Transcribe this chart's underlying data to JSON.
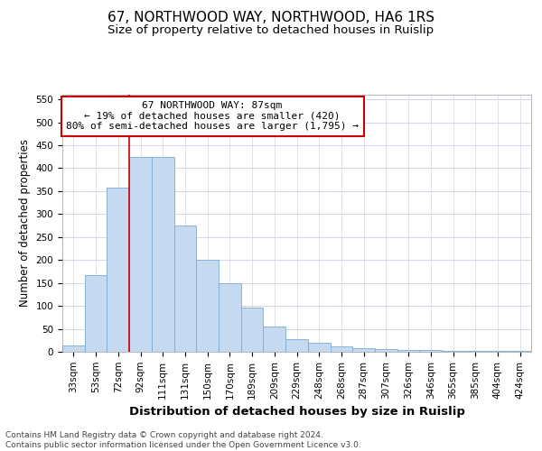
{
  "title": "67, NORTHWOOD WAY, NORTHWOOD, HA6 1RS",
  "subtitle": "Size of property relative to detached houses in Ruislip",
  "xlabel": "Distribution of detached houses by size in Ruislip",
  "ylabel": "Number of detached properties",
  "categories": [
    "33sqm",
    "53sqm",
    "72sqm",
    "92sqm",
    "111sqm",
    "131sqm",
    "150sqm",
    "170sqm",
    "189sqm",
    "209sqm",
    "229sqm",
    "248sqm",
    "268sqm",
    "287sqm",
    "307sqm",
    "326sqm",
    "346sqm",
    "365sqm",
    "385sqm",
    "404sqm",
    "424sqm"
  ],
  "values": [
    13,
    168,
    357,
    425,
    425,
    275,
    200,
    150,
    97,
    55,
    28,
    20,
    11,
    7,
    5,
    3,
    3,
    2,
    2,
    1,
    2
  ],
  "bar_color": "#c5d9f0",
  "bar_edge_color": "#7aadd4",
  "vline_x": 2.5,
  "vline_color": "#cc0000",
  "annotation_text": "67 NORTHWOOD WAY: 87sqm\n← 19% of detached houses are smaller (420)\n80% of semi-detached houses are larger (1,795) →",
  "annotation_box_color": "#ffffff",
  "annotation_box_edge": "#cc0000",
  "ylim": [
    0,
    560
  ],
  "yticks": [
    0,
    50,
    100,
    150,
    200,
    250,
    300,
    350,
    400,
    450,
    500,
    550
  ],
  "footer_text": "Contains HM Land Registry data © Crown copyright and database right 2024.\nContains public sector information licensed under the Open Government Licence v3.0.",
  "title_fontsize": 11,
  "subtitle_fontsize": 9.5,
  "xlabel_fontsize": 9.5,
  "ylabel_fontsize": 8.5,
  "tick_fontsize": 7.5,
  "annot_fontsize": 8,
  "footer_fontsize": 6.5,
  "background_color": "#ffffff",
  "grid_color": "#d0d8e8"
}
